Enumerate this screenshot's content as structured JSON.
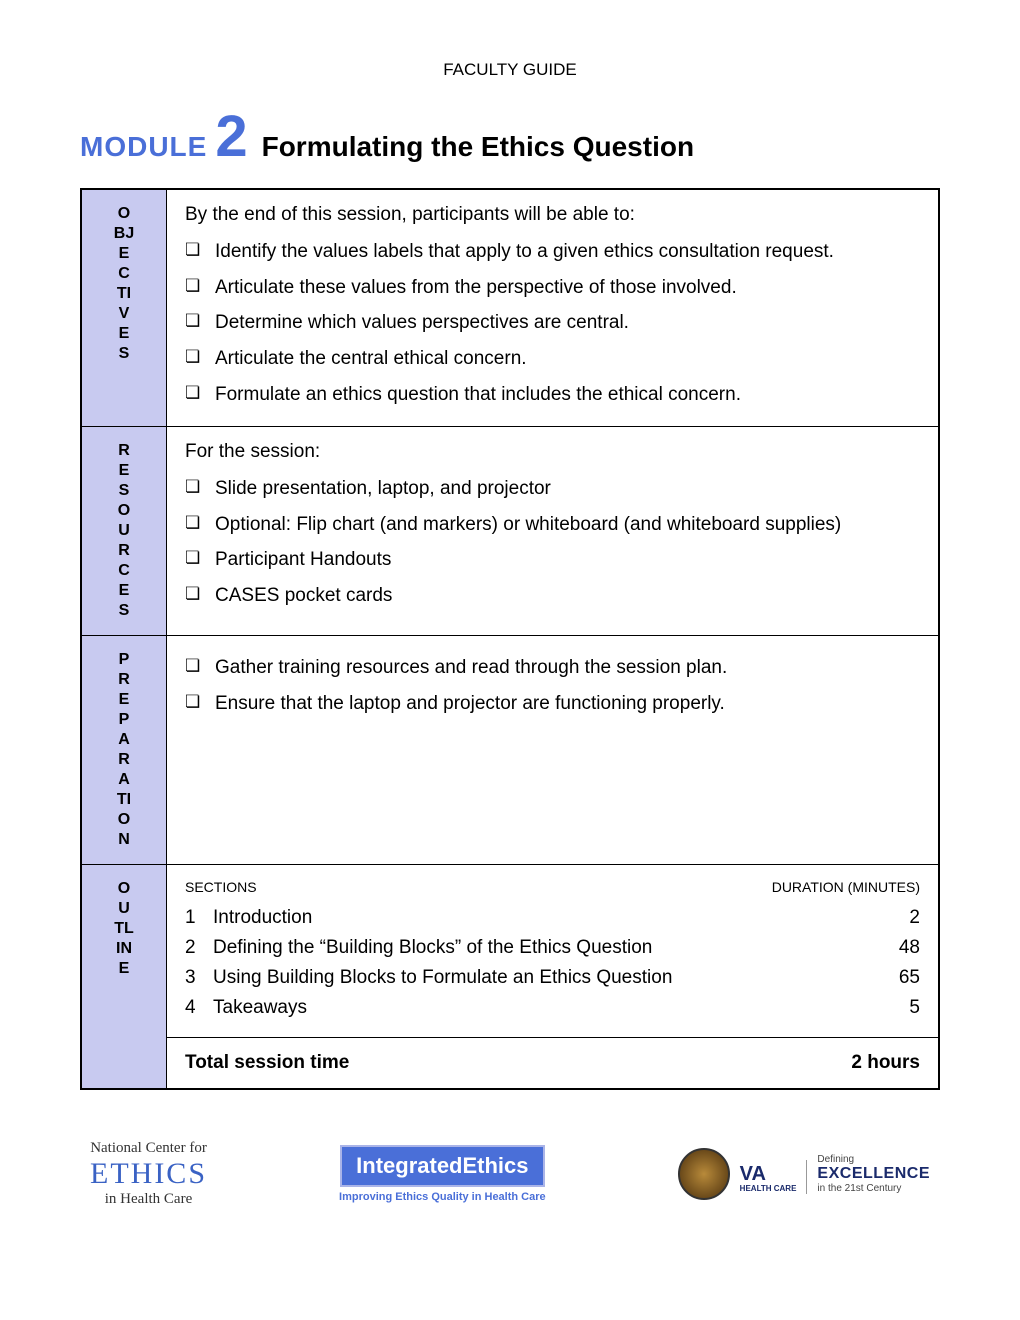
{
  "header": "FACULTY GUIDE",
  "module": {
    "label": "MODULE",
    "number": "2",
    "title": "Formulating the Ethics Question"
  },
  "colors": {
    "accent": "#4a6fd8",
    "side_bg": "#c8caf0"
  },
  "sections": {
    "objectives": {
      "side": [
        "O",
        "BJ",
        "E",
        "C",
        "TI",
        "V",
        "E",
        "S"
      ],
      "intro": "By the end of this session, participants will be able to:",
      "items": [
        "Identify the values labels that apply to a given ethics consultation request.",
        "Articulate these values from the perspective of those involved.",
        "Determine which values perspectives are central.",
        "Articulate the central ethical concern.",
        "Formulate an ethics question that includes the ethical concern."
      ]
    },
    "resources": {
      "side": [
        "R",
        "E",
        "S",
        "O",
        "U",
        "R",
        "C",
        "E",
        "S"
      ],
      "intro": "For the session:",
      "items": [
        "Slide presentation, laptop, and projector",
        "Optional: Flip chart (and markers) or whiteboard (and whiteboard supplies)",
        "Participant Handouts",
        "CASES pocket cards"
      ]
    },
    "preparation": {
      "side": [
        "P",
        "R",
        "E",
        "P",
        "A",
        "R",
        "A",
        "TI",
        "O",
        "N"
      ],
      "items": [
        "Gather training resources and read through the session plan.",
        "Ensure that the laptop and projector are functioning properly."
      ]
    },
    "outline": {
      "side": [
        "O",
        "U",
        "TL",
        "IN",
        "E"
      ],
      "headers": {
        "left": "SECTIONS",
        "right": "DURATION (MINUTES)"
      },
      "rows": [
        {
          "n": "1",
          "label": "Introduction",
          "dur": "2"
        },
        {
          "n": "2",
          "label": "Defining the “Building Blocks” of the Ethics Question",
          "dur": "48"
        },
        {
          "n": "3",
          "label": "Using Building Blocks to Formulate an Ethics Question",
          "dur": "65"
        },
        {
          "n": "4",
          "label": "Takeaways",
          "dur": "5"
        }
      ],
      "total": {
        "label": "Total session time",
        "value": "2 hours"
      }
    }
  },
  "logos": {
    "ethics": {
      "top": "National Center for",
      "mid": "ETHICS",
      "bot": "in Health Care"
    },
    "integrated": {
      "main": "IntegratedEthics",
      "sub": "Improving Ethics Quality in Health Care"
    },
    "va": {
      "va": "VA",
      "hc": "HEALTH CARE",
      "def": "Defining",
      "ex": "EXCELLENCE",
      "cent": "in the 21st Century"
    }
  }
}
